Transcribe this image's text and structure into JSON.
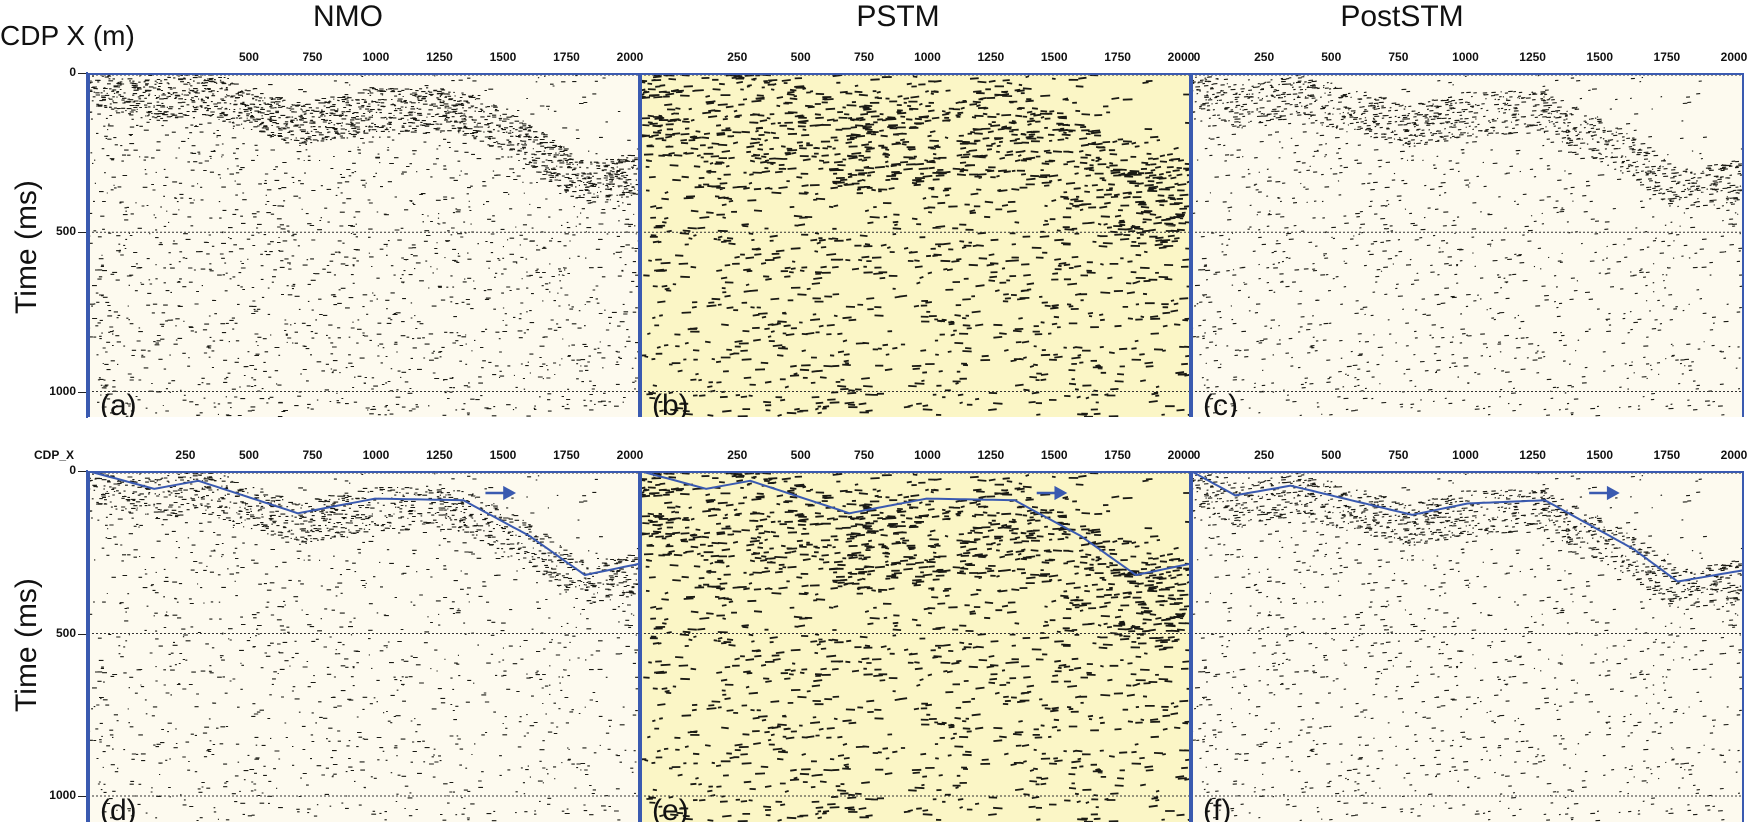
{
  "titles": {
    "nmo": "NMO",
    "pstm": "PSTM",
    "poststm": "PostSTM"
  },
  "axes": {
    "top_x_label": "CDP X (m)",
    "bottom_x_label": "CDP_X",
    "y_label": "Time (ms)",
    "x_ticks": [
      [
        "500",
        "750",
        "1000",
        "1250",
        "1500",
        "1750",
        "2000"
      ],
      [
        "250",
        "500",
        "750",
        "1000",
        "1250",
        "1500",
        "1750",
        "2000"
      ],
      [
        "0",
        "250",
        "500",
        "750",
        "1000",
        "1250",
        "1500",
        "1750",
        "2000"
      ]
    ],
    "x_ticks_bottom": [
      [
        "250",
        "500",
        "750",
        "1000",
        "1250",
        "1500",
        "1750",
        "2000"
      ],
      [
        "250",
        "500",
        "750",
        "1000",
        "1250",
        "1500",
        "1750",
        "2000"
      ],
      [
        "0",
        "250",
        "500",
        "750",
        "1000",
        "1250",
        "1500",
        "1750",
        "2000"
      ]
    ],
    "y_ticks": [
      "0",
      "500",
      "1000"
    ]
  },
  "panels": [
    {
      "id": "a",
      "label": "(a)",
      "method": "NMO",
      "bg": "#fdfaef",
      "density": "sparse"
    },
    {
      "id": "b",
      "label": "(b)",
      "method": "PSTM",
      "bg": "#fbf6c6",
      "density": "dense"
    },
    {
      "id": "c",
      "label": "(c)",
      "method": "PostSTM",
      "bg": "#fdfaef",
      "density": "sparse"
    },
    {
      "id": "d",
      "label": "(d)",
      "method": "NMO",
      "bg": "#fdfaef",
      "density": "sparse"
    },
    {
      "id": "e",
      "label": "(e)",
      "method": "PSTM",
      "bg": "#fbf6c6",
      "density": "dense"
    },
    {
      "id": "f",
      "label": "(f)",
      "method": "PostSTM",
      "bg": "#fdfaef",
      "density": "sparse"
    }
  ],
  "colors": {
    "horizon": "#3a5ab0",
    "frame": "#3a5ab0",
    "gridline": "#333333"
  }
}
